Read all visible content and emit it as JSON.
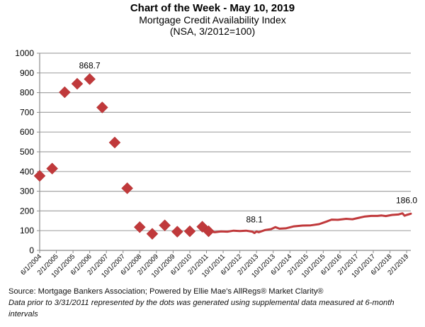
{
  "chart_data": {
    "type": "scatter+line",
    "title": "Chart of the Week - May 10, 2019",
    "subtitle_lines": [
      "Mortgage Credit Availability Index",
      "(NSA, 3/2012=100)"
    ],
    "xlabel": "",
    "ylabel": "",
    "ylim": [
      0,
      1000
    ],
    "y_ticks": [
      0,
      100,
      200,
      300,
      400,
      500,
      600,
      700,
      800,
      900,
      1000
    ],
    "x_range_months": [
      "2004-06",
      "2019-04"
    ],
    "x_tick_labels": [
      "6/1/2004",
      "2/1/2005",
      "10/1/2005",
      "6/1/2006",
      "2/1/2007",
      "10/1/2007",
      "6/1/2008",
      "2/1/2009",
      "10/1/2009",
      "6/1/2010",
      "2/1/2011",
      "10/1/2011",
      "6/1/2012",
      "2/1/2013",
      "10/1/2013",
      "6/1/2014",
      "2/1/2015",
      "10/1/2015",
      "6/1/2016",
      "2/1/2017",
      "10/1/2017",
      "6/1/2018",
      "2/1/2019"
    ],
    "grid": true,
    "series": [
      {
        "name": "Supplemental 6-month data (dots)",
        "style": "diamond",
        "color": "#C0393B",
        "points": [
          {
            "date": "2004-06",
            "value": 378
          },
          {
            "date": "2004-12",
            "value": 415
          },
          {
            "date": "2005-06",
            "value": 802
          },
          {
            "date": "2005-12",
            "value": 845
          },
          {
            "date": "2006-06",
            "value": 868.7
          },
          {
            "date": "2006-12",
            "value": 725
          },
          {
            "date": "2007-06",
            "value": 547
          },
          {
            "date": "2007-12",
            "value": 315
          },
          {
            "date": "2008-06",
            "value": 118
          },
          {
            "date": "2008-12",
            "value": 84
          },
          {
            "date": "2009-06",
            "value": 127
          },
          {
            "date": "2009-12",
            "value": 95
          },
          {
            "date": "2010-06",
            "value": 97
          },
          {
            "date": "2010-12",
            "value": 120
          },
          {
            "date": "2011-03",
            "value": 97
          }
        ]
      },
      {
        "name": "Mortgage Credit Availability Index (monthly)",
        "style": "line",
        "color": "#C0393B",
        "points": [
          {
            "date": "2011-03",
            "value": 97
          },
          {
            "date": "2011-06",
            "value": 92
          },
          {
            "date": "2011-09",
            "value": 96
          },
          {
            "date": "2011-12",
            "value": 95
          },
          {
            "date": "2012-03",
            "value": 100
          },
          {
            "date": "2012-06",
            "value": 98
          },
          {
            "date": "2012-09",
            "value": 100
          },
          {
            "date": "2012-12",
            "value": 95
          },
          {
            "date": "2013-01",
            "value": 88.1
          },
          {
            "date": "2013-02",
            "value": 96
          },
          {
            "date": "2013-03",
            "value": 92
          },
          {
            "date": "2013-06",
            "value": 103
          },
          {
            "date": "2013-09",
            "value": 108
          },
          {
            "date": "2013-11",
            "value": 118
          },
          {
            "date": "2014-01",
            "value": 110
          },
          {
            "date": "2014-04",
            "value": 112
          },
          {
            "date": "2014-08",
            "value": 122
          },
          {
            "date": "2014-12",
            "value": 126
          },
          {
            "date": "2015-04",
            "value": 127
          },
          {
            "date": "2015-08",
            "value": 133
          },
          {
            "date": "2015-12",
            "value": 148
          },
          {
            "date": "2016-02",
            "value": 156
          },
          {
            "date": "2016-05",
            "value": 155
          },
          {
            "date": "2016-09",
            "value": 160
          },
          {
            "date": "2016-12",
            "value": 158
          },
          {
            "date": "2017-03",
            "value": 165
          },
          {
            "date": "2017-06",
            "value": 172
          },
          {
            "date": "2017-09",
            "value": 175
          },
          {
            "date": "2017-12",
            "value": 175
          },
          {
            "date": "2018-02",
            "value": 177
          },
          {
            "date": "2018-04",
            "value": 174
          },
          {
            "date": "2018-07",
            "value": 180
          },
          {
            "date": "2018-10",
            "value": 182
          },
          {
            "date": "2018-12",
            "value": 188
          },
          {
            "date": "2019-01",
            "value": 176
          },
          {
            "date": "2019-02",
            "value": 180
          },
          {
            "date": "2019-04",
            "value": 186.0
          }
        ]
      }
    ],
    "annotations": [
      {
        "text": "868.7",
        "date": "2006-06",
        "value": 868.7
      },
      {
        "text": "88.1",
        "date": "2013-01",
        "value": 88.1
      },
      {
        "text": "186.0",
        "date": "2019-04",
        "value": 186.0
      }
    ],
    "legend": "none"
  },
  "footer": {
    "source": "Source: Mortgage Bankers Association; Powered by Ellie Mae's AllRegs® Market Clarity®",
    "note": "Data prior to 3/31/2011 represented by the dots was generated using supplemental data measured at 6-month intervals"
  }
}
